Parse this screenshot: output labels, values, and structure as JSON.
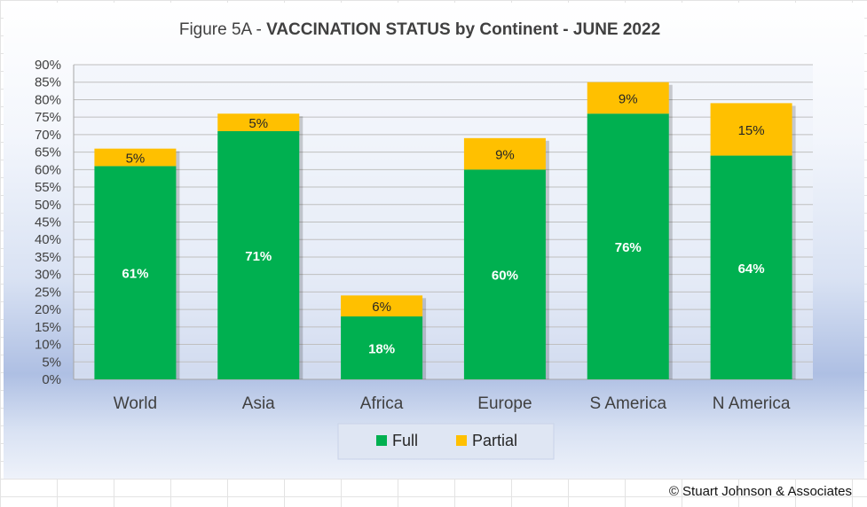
{
  "chart_data": {
    "type": "bar",
    "stacked": true,
    "title_prefix": "Figure 5A - ",
    "title_main": "VACCINATION STATUS by Continent - JUNE 2022",
    "categories": [
      "World",
      "Asia",
      "Africa",
      "Europe",
      "S America",
      "N America"
    ],
    "series": [
      {
        "name": "Full",
        "values": [
          61,
          71,
          18,
          60,
          76,
          64
        ],
        "color": "#00b050",
        "labels": [
          "61%",
          "71%",
          "18%",
          "60%",
          "76%",
          "64%"
        ]
      },
      {
        "name": "Partial",
        "values": [
          5,
          5,
          6,
          9,
          9,
          15
        ],
        "color": "#ffc000",
        "labels": [
          "5%",
          "5%",
          "6%",
          "9%",
          "9%",
          "15%"
        ]
      }
    ],
    "ylim": [
      0,
      90
    ],
    "y_ticks": [
      "0%",
      "5%",
      "10%",
      "15%",
      "20%",
      "25%",
      "30%",
      "35%",
      "40%",
      "45%",
      "50%",
      "55%",
      "60%",
      "65%",
      "70%",
      "75%",
      "80%",
      "85%",
      "90%"
    ],
    "grid": true,
    "legend_position": "bottom"
  },
  "credit": "© Stuart Johnson & Associates"
}
